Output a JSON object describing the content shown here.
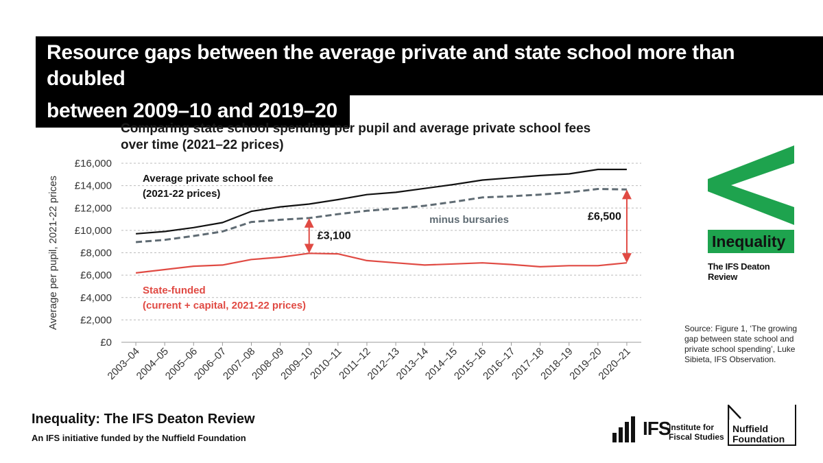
{
  "headline": {
    "line1": "Resource gaps between the average private and state school more than doubled",
    "line2": "between 2009–10 and 2019–20"
  },
  "chart_data": {
    "type": "line",
    "title": "Comparing state school spending per pupil and average private school fees over time (2021–22 prices)",
    "ylabel": "Average per pupil, 2021-22 prices",
    "ylim": [
      0,
      16000
    ],
    "yticks": [
      0,
      2000,
      4000,
      6000,
      8000,
      10000,
      12000,
      14000,
      16000
    ],
    "ytick_labels": [
      "£0",
      "£2,000",
      "£4,000",
      "£6,000",
      "£8,000",
      "£10,000",
      "£12,000",
      "£14,000",
      "£16,000"
    ],
    "grid": "horizontal dashed",
    "categories": [
      "2003–04",
      "2004–05",
      "2005–06",
      "2006–07",
      "2007–08",
      "2008–09",
      "2009–10",
      "2010–11",
      "2011–12",
      "2012–13",
      "2013–14",
      "2014–15",
      "2015–16",
      "2016–17",
      "2017–18",
      "2018–19",
      "2019–20",
      "2020–21"
    ],
    "series": [
      {
        "name": "Average private school fee (2021-22 prices)",
        "label_lines": [
          "Average private school fee",
          "(2021-22 prices)"
        ],
        "style": "solid",
        "color": "#111111",
        "values": [
          9700,
          9900,
          10250,
          10700,
          11700,
          12100,
          12350,
          12750,
          13200,
          13400,
          13750,
          14100,
          14500,
          14700,
          14900,
          15050,
          15450,
          15450
        ]
      },
      {
        "name": "minus bursaries",
        "label_lines": [
          "minus bursaries"
        ],
        "style": "dashed",
        "color": "#5f6b73",
        "values": [
          8950,
          9150,
          9500,
          9900,
          10750,
          10950,
          11100,
          11450,
          11750,
          11950,
          12200,
          12550,
          12950,
          13050,
          13200,
          13400,
          13700,
          13650
        ]
      },
      {
        "name": "State-funded (current + capital, 2021-22 prices)",
        "label_lines": [
          "State-funded",
          "(current + capital, 2021-22 prices)"
        ],
        "style": "solid",
        "color": "#e04a43",
        "values": [
          6200,
          6500,
          6800,
          6900,
          7400,
          7600,
          7950,
          7900,
          7300,
          7100,
          6900,
          7000,
          7100,
          6950,
          6750,
          6850,
          6850,
          7100
        ]
      }
    ],
    "annotations": [
      {
        "text": "£3,100",
        "category": "2009–10",
        "from": 7950,
        "to": 11100
      },
      {
        "text": "£6,500",
        "category": "2020–21",
        "from": 7100,
        "to": 13650
      }
    ]
  },
  "branding": {
    "logo_word": "Inequality",
    "logo_sub": "The IFS Deaton Review",
    "logo_color": "#1ea34e",
    "source_text": "Source: Figure 1, ‘The growing gap between state school and private school spending’, Luke Sibieta, IFS Observation.",
    "footer_title": "Inequality: The IFS Deaton Review",
    "footer_sub": "An IFS initiative funded by the Nuffield Foundation",
    "ifs_mark": "IFS",
    "ifs_name_line1": "Institute for",
    "ifs_name_line2": "Fiscal Studies",
    "nuffield_line1": "Nuffield",
    "nuffield_line2": "Foundation"
  }
}
